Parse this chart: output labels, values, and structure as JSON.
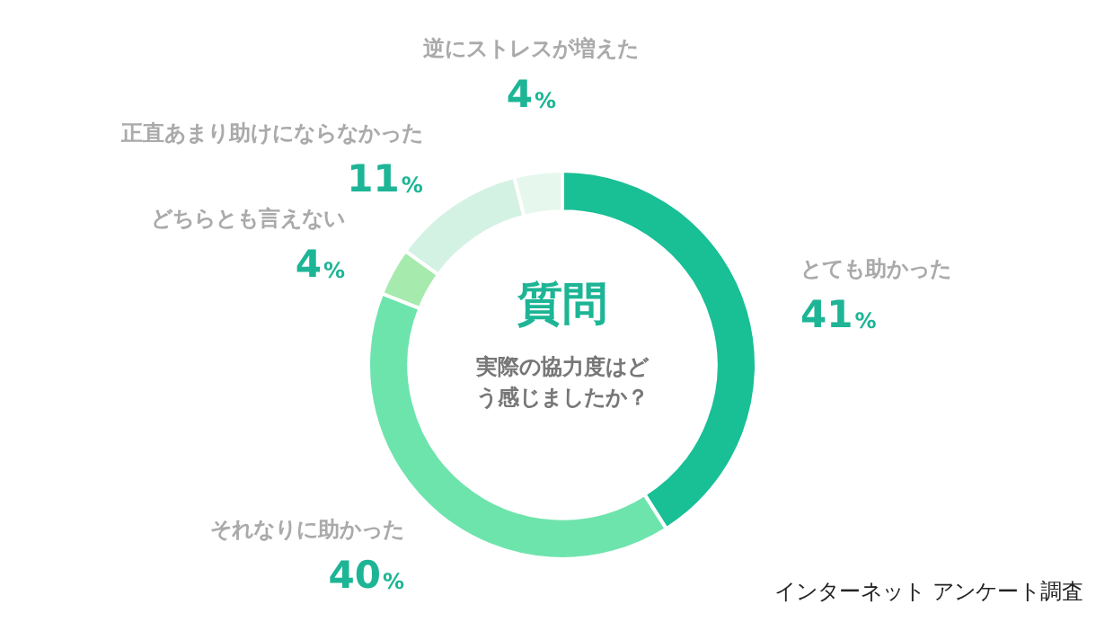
{
  "chart_data": {
    "type": "donut",
    "title": "質問",
    "subtitle": "実際の協力度はどう感じましたか？",
    "categories": [
      "とても助かった",
      "それなりに助かった",
      "どちらとも言えない",
      "正直あまり助けにならなかった",
      "逆にストレスが増えた"
    ],
    "values": [
      41,
      40,
      4,
      11,
      4
    ],
    "value_labels": [
      "41%",
      "40%",
      "4%",
      "11%",
      "4%"
    ],
    "colors": [
      "#19bf95",
      "#6ee4ad",
      "#a6eaae",
      "#d3f2e3",
      "#e6f7ee"
    ],
    "legend": false,
    "annotations": [
      "インターネット アンケート調査"
    ]
  }
}
